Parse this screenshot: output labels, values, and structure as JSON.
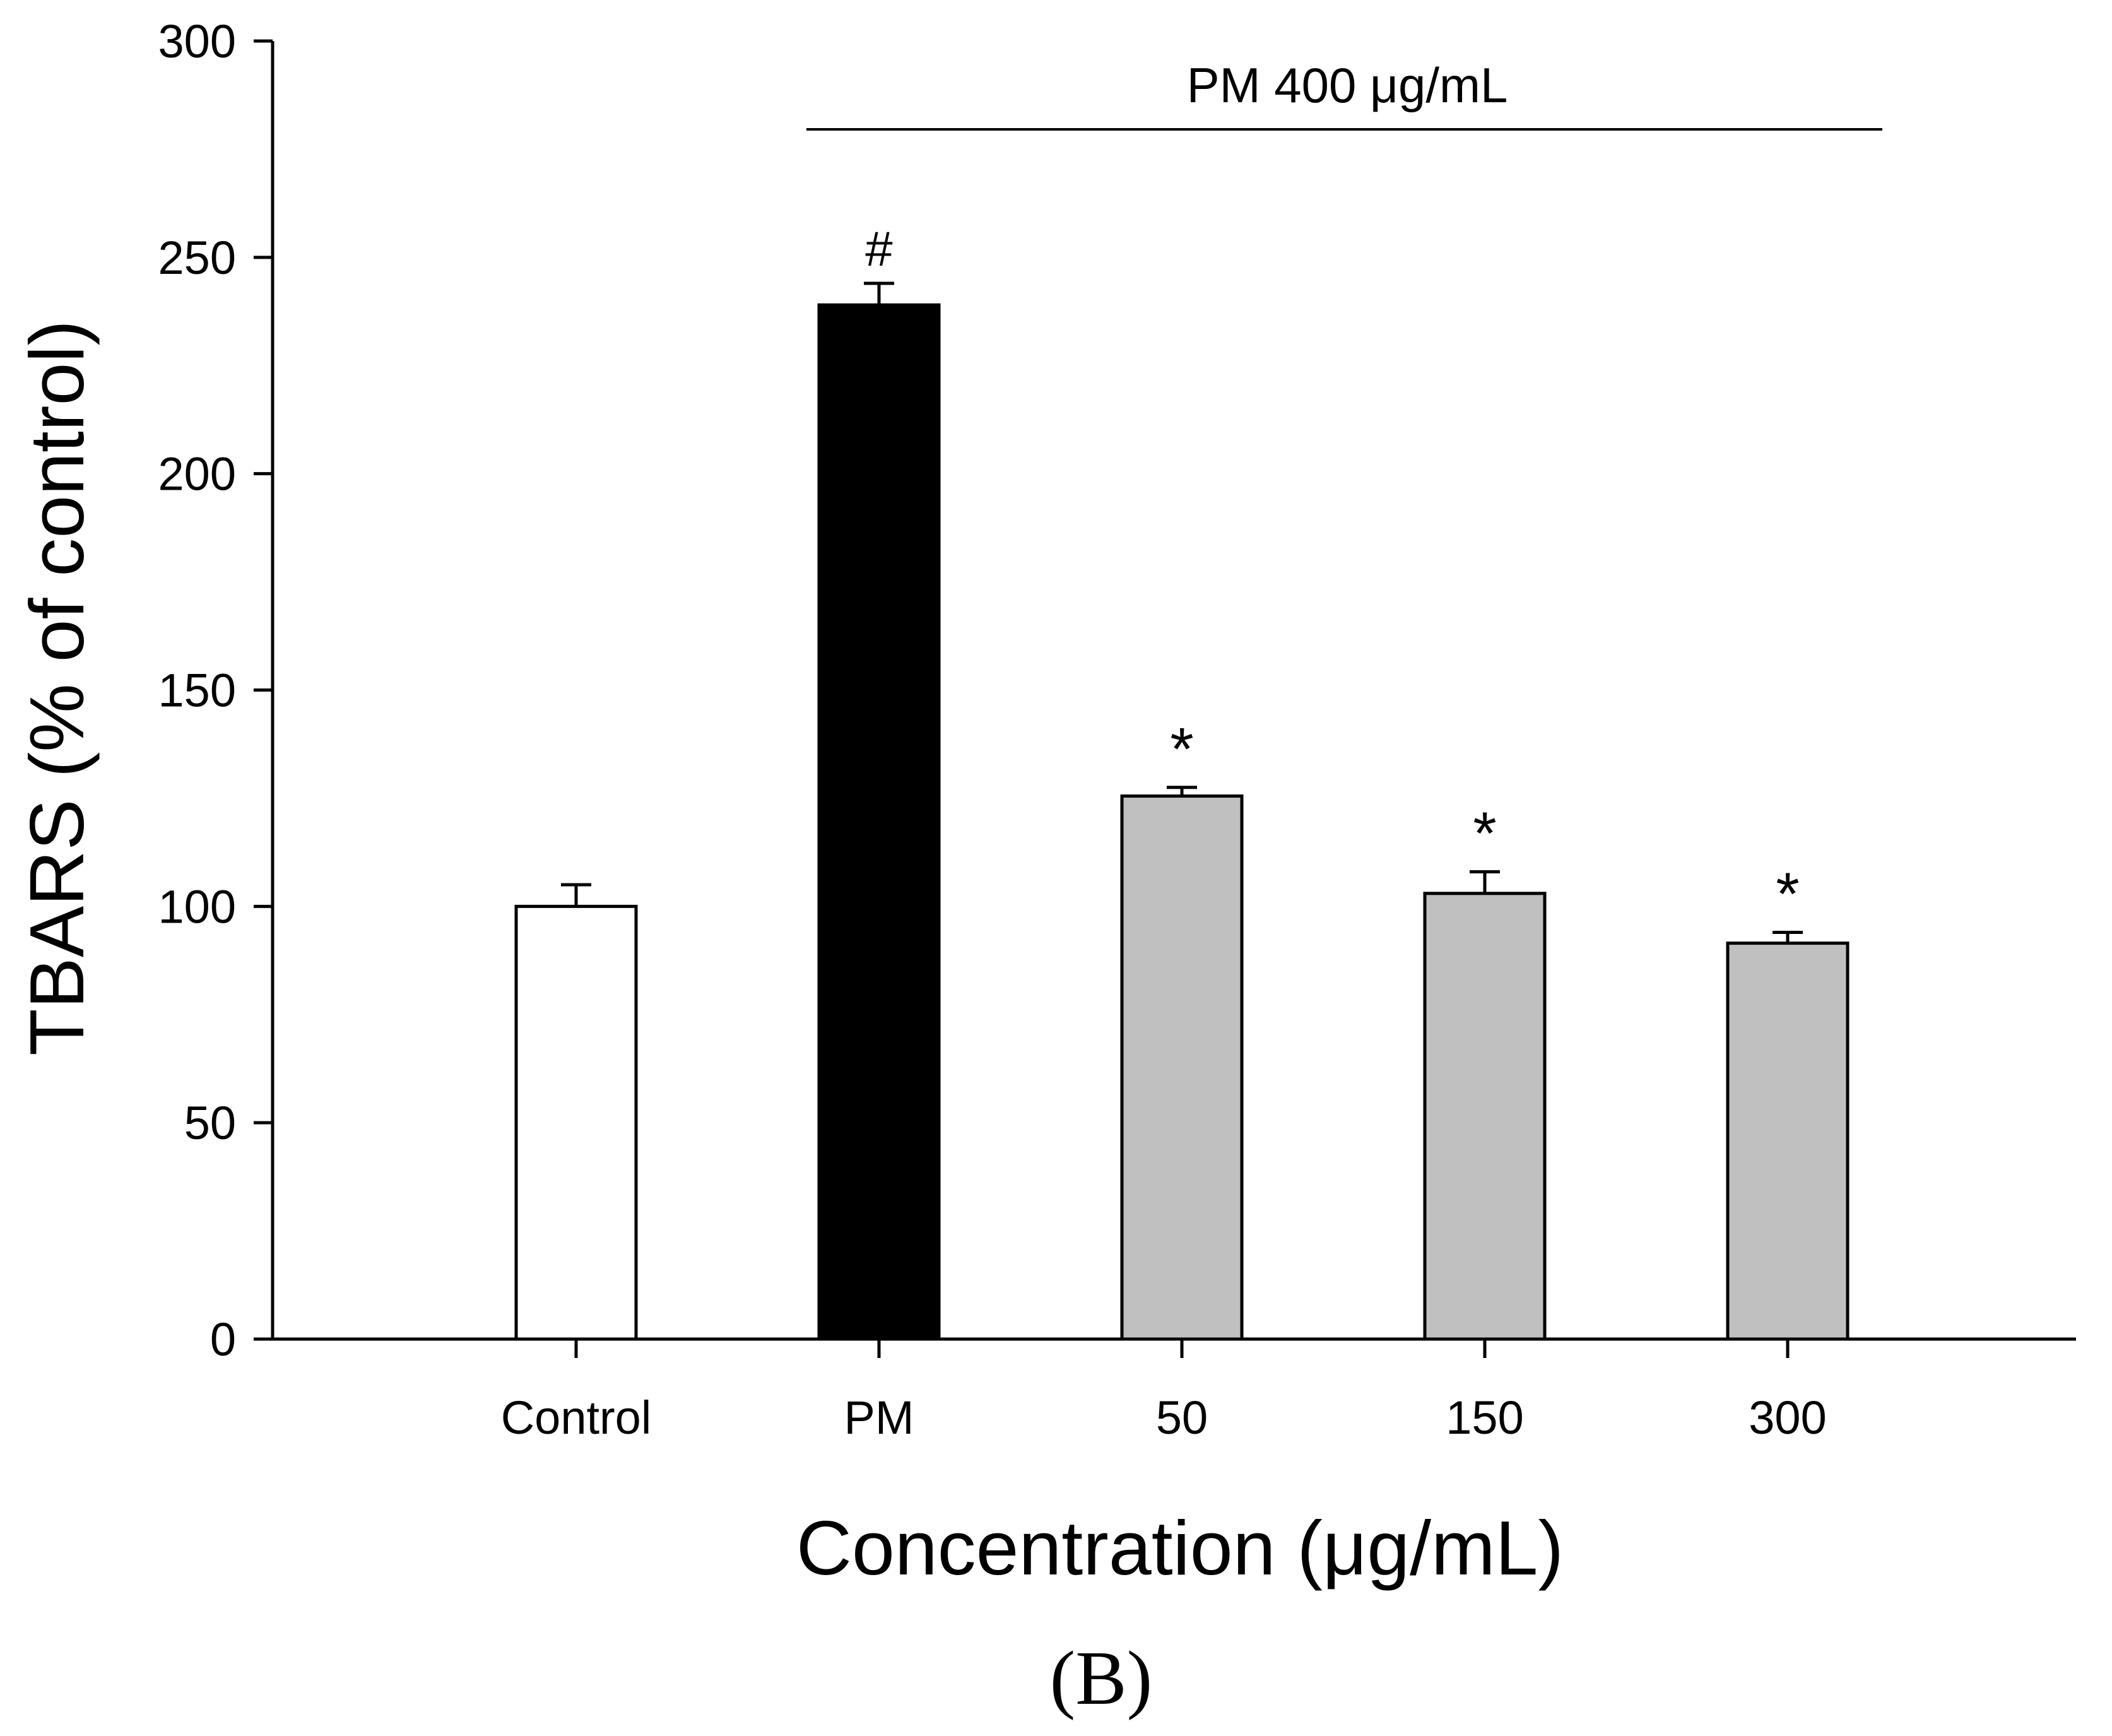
{
  "chart_data": {
    "type": "bar",
    "categories": [
      "Control",
      "PM",
      "50",
      "150",
      "300"
    ],
    "values": [
      100,
      239,
      125.5,
      103,
      91.5
    ],
    "errors": [
      5,
      5,
      2,
      5,
      2.5
    ],
    "significance": [
      "",
      "#",
      "*",
      "*",
      "*"
    ],
    "bar_colors": [
      "#ffffff",
      "#000000",
      "#c0c0c0",
      "#c0c0c0",
      "#c0c0c0"
    ],
    "xlabel": "Concentration (μg/mL)",
    "ylabel": "TBARS (% of control)",
    "ylim": [
      0,
      300
    ],
    "yticks": [
      0,
      50,
      100,
      150,
      200,
      250,
      300
    ],
    "group_bracket": {
      "label": "PM 400 μg/mL",
      "from_category": "PM",
      "to_category": "300"
    },
    "panel_label": "(B)"
  }
}
